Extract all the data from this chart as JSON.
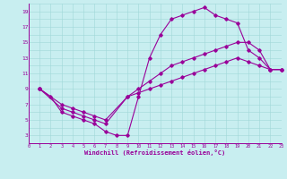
{
  "xlabel": "Windchill (Refroidissement éolien,°C)",
  "bg_color": "#c8eef0",
  "line_color": "#990099",
  "grid_color": "#a0d8d8",
  "xlim": [
    0,
    23
  ],
  "ylim": [
    2,
    20
  ],
  "xticks": [
    0,
    1,
    2,
    3,
    4,
    5,
    6,
    7,
    8,
    9,
    10,
    11,
    12,
    13,
    14,
    15,
    16,
    17,
    18,
    19,
    20,
    21,
    22,
    23
  ],
  "yticks": [
    3,
    5,
    7,
    9,
    11,
    13,
    15,
    17,
    19
  ],
  "line1_x": [
    1,
    2,
    3,
    4,
    5,
    6,
    7,
    8,
    9,
    10,
    11,
    12,
    13,
    14,
    15,
    16,
    17,
    18,
    19,
    20,
    21,
    22,
    23
  ],
  "line1_y": [
    9,
    8,
    6,
    5.5,
    5,
    4.5,
    3.5,
    3,
    3,
    8,
    13,
    16,
    18,
    18.5,
    19,
    19.5,
    18.5,
    18,
    17.5,
    14,
    13,
    11.5,
    11.5
  ],
  "line2_x": [
    1,
    3,
    4,
    5,
    6,
    7,
    9,
    10,
    11,
    12,
    13,
    14,
    15,
    16,
    17,
    18,
    19,
    20,
    21,
    22,
    23
  ],
  "line2_y": [
    9,
    6.5,
    6,
    5.5,
    5,
    4.5,
    8,
    9,
    10,
    11,
    12,
    12.5,
    13,
    13.5,
    14,
    14.5,
    15,
    15,
    14,
    11.5,
    11.5
  ],
  "line3_x": [
    1,
    3,
    4,
    5,
    6,
    7,
    9,
    10,
    11,
    12,
    13,
    14,
    15,
    16,
    17,
    18,
    19,
    20,
    21,
    22,
    23
  ],
  "line3_y": [
    9,
    7,
    6.5,
    6,
    5.5,
    5,
    8,
    8.5,
    9,
    9.5,
    10,
    10.5,
    11,
    11.5,
    12,
    12.5,
    13,
    12.5,
    12,
    11.5,
    11.5
  ]
}
